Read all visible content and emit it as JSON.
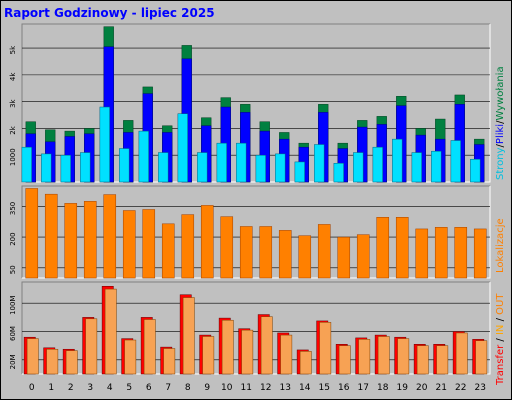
{
  "title": "Raport Godzinowy -  lipiec 2025",
  "colors": {
    "background": "#c0c0c0",
    "panel": "#c0c0c0",
    "grid": "#000000",
    "hits": "#008040",
    "files": "#0000ff",
    "pages": "#00e0ff",
    "sites": "#ff8000",
    "transfer_out": "#ff0000",
    "transfer_in": "#f7a254"
  },
  "chart_data": [
    {
      "type": "bar",
      "name": "hits-files-pages",
      "categories": [
        "0",
        "1",
        "2",
        "3",
        "4",
        "5",
        "6",
        "7",
        "8",
        "9",
        "10",
        "11",
        "12",
        "13",
        "14",
        "15",
        "16",
        "17",
        "18",
        "19",
        "20",
        "21",
        "22",
        "23"
      ],
      "series": [
        {
          "name": "Wywołania",
          "values": [
            2250,
            1950,
            1900,
            2000,
            5800,
            2300,
            3550,
            2100,
            5100,
            2400,
            3150,
            2900,
            2250,
            1850,
            1450,
            2900,
            1450,
            2300,
            2450,
            3200,
            2000,
            2350,
            3250,
            1600
          ]
        },
        {
          "name": "Pliki",
          "values": [
            1800,
            1500,
            1700,
            1800,
            5050,
            1850,
            3300,
            1850,
            4600,
            2100,
            2800,
            2600,
            1900,
            1600,
            1300,
            2600,
            1250,
            2050,
            2150,
            2850,
            1750,
            1600,
            2900,
            1400
          ]
        },
        {
          "name": "Strony",
          "values": [
            1300,
            1050,
            1000,
            1100,
            2800,
            1250,
            1900,
            1100,
            2550,
            1100,
            1450,
            1450,
            1000,
            1050,
            750,
            1400,
            700,
            1100,
            1300,
            1600,
            1100,
            1150,
            1550,
            850
          ]
        }
      ],
      "ylabel": "Strony / Pliki / Wywołania",
      "yticks": [
        "1000",
        "2k",
        "3k",
        "4k",
        "5k"
      ],
      "ytick_values": [
        1000,
        2000,
        3000,
        4000,
        5000
      ],
      "ylim": [
        0,
        5900
      ],
      "grid": true
    },
    {
      "type": "bar",
      "name": "sites",
      "categories": [
        "0",
        "1",
        "2",
        "3",
        "4",
        "5",
        "6",
        "7",
        "8",
        "9",
        "10",
        "11",
        "12",
        "13",
        "14",
        "15",
        "16",
        "17",
        "18",
        "19",
        "20",
        "21",
        "22",
        "23"
      ],
      "series": [
        {
          "name": "Lokalizacje",
          "values": [
            438,
            410,
            365,
            375,
            408,
            330,
            335,
            265,
            310,
            355,
            300,
            252,
            252,
            233,
            207,
            262,
            200,
            212,
            297,
            297,
            240,
            248,
            248,
            240
          ]
        }
      ],
      "ylabel": "Lokalizacje",
      "yticks": [
        "50",
        "200",
        "350"
      ],
      "ytick_values": [
        50,
        200,
        350
      ],
      "ylim": [
        0,
        450
      ],
      "grid": true
    },
    {
      "type": "bar",
      "name": "transfer",
      "categories": [
        "0",
        "1",
        "2",
        "3",
        "4",
        "5",
        "6",
        "7",
        "8",
        "9",
        "10",
        "11",
        "12",
        "13",
        "14",
        "15",
        "16",
        "17",
        "18",
        "19",
        "20",
        "21",
        "22",
        "23"
      ],
      "series": [
        {
          "name": "Transfer OUT",
          "values": [
            52,
            37,
            35,
            80,
            124,
            50,
            80,
            38,
            112,
            55,
            79,
            64,
            84,
            58,
            34,
            75,
            42,
            51,
            55,
            52,
            42,
            42,
            60,
            49
          ]
        },
        {
          "name": "Transfer IN",
          "values": [
            50,
            35,
            33,
            78,
            120,
            48,
            77,
            36,
            108,
            53,
            76,
            62,
            81,
            55,
            32,
            73,
            40,
            49,
            53,
            50,
            40,
            40,
            58,
            47
          ]
        }
      ],
      "ylabel": "Transfer / IN / OUT",
      "ylabel_parts": {
        "a": "Transfer",
        "b": "IN",
        "c": "OUT",
        "sep": " / "
      },
      "yticks": [
        "20M",
        "60M",
        "100M"
      ],
      "ytick_values": [
        20,
        60,
        100
      ],
      "ylim": [
        0,
        130
      ],
      "grid": true
    }
  ]
}
